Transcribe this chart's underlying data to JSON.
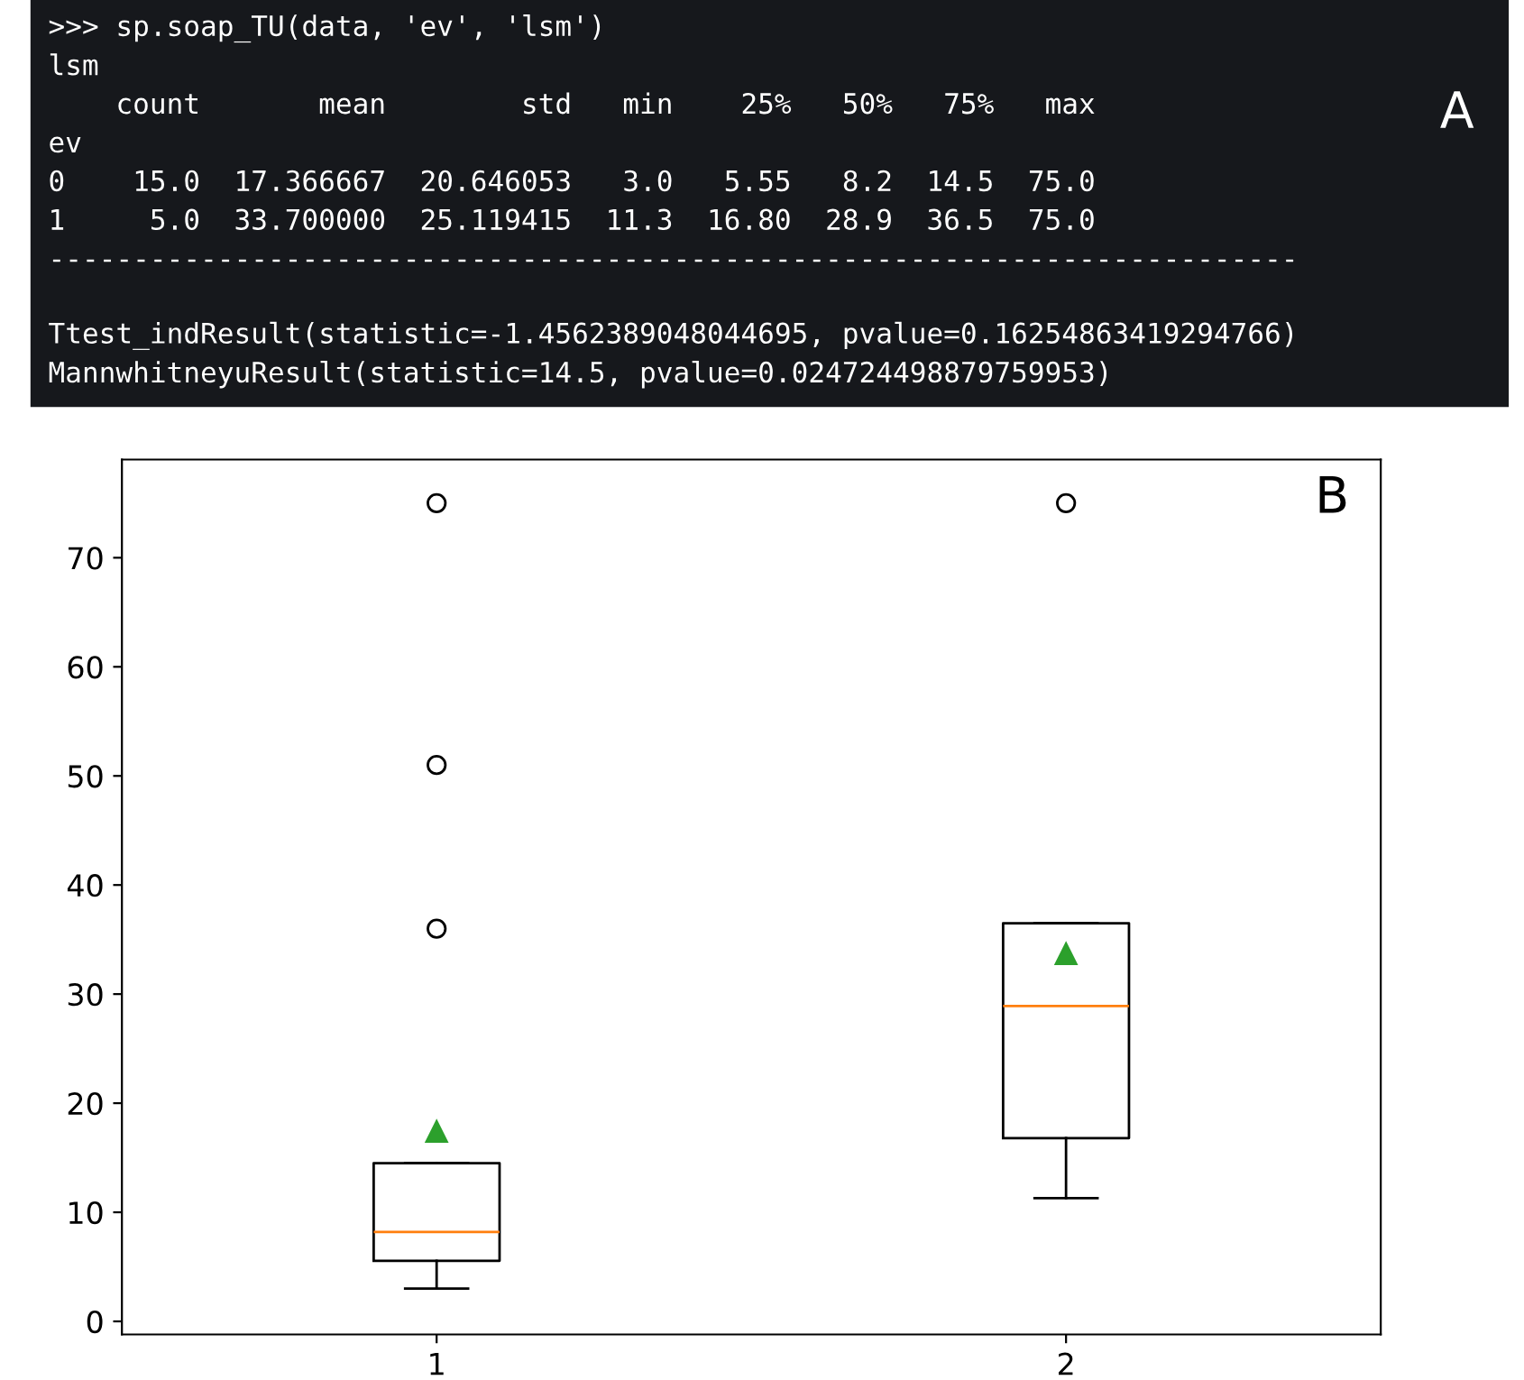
{
  "chart_data": [
    {
      "type": "other",
      "title": "A",
      "annotations": [
        ">>> sp.soap_TU(data, 'ev', 'lsm')",
        "lsm",
        "    count       mean        std   min    25%   50%   75%   max",
        "ev",
        "0    15.0  17.366667  20.646053   3.0   5.55   8.2  14.5  75.0",
        "1     5.0  33.700000  25.119415  11.3  16.80  28.9  36.5  75.0",
        "--------------------------------------------------------------------------",
        "Ttest_indResult(statistic=-1.4562389048044695, pvalue=0.16254863419294766)",
        "MannwhitneyuResult(statistic=14.5, pvalue=0.024724498879759953)"
      ]
    },
    {
      "type": "box",
      "title": "B",
      "categories": [
        "1",
        "2"
      ],
      "boxes": [
        {
          "low": 3.0,
          "q1": 5.55,
          "median": 8.2,
          "q3": 14.5,
          "high": 14.5,
          "mean": 17.4,
          "outliers": [
            36,
            51,
            75
          ]
        },
        {
          "low": 11.3,
          "q1": 16.8,
          "median": 28.9,
          "q3": 36.5,
          "high": 36.5,
          "mean": 33.7,
          "outliers": [
            75
          ]
        }
      ],
      "ylim": [
        -1.2,
        79
      ],
      "yticks": [
        0,
        10,
        20,
        30,
        40,
        50,
        60,
        70
      ],
      "grid": false
    }
  ]
}
